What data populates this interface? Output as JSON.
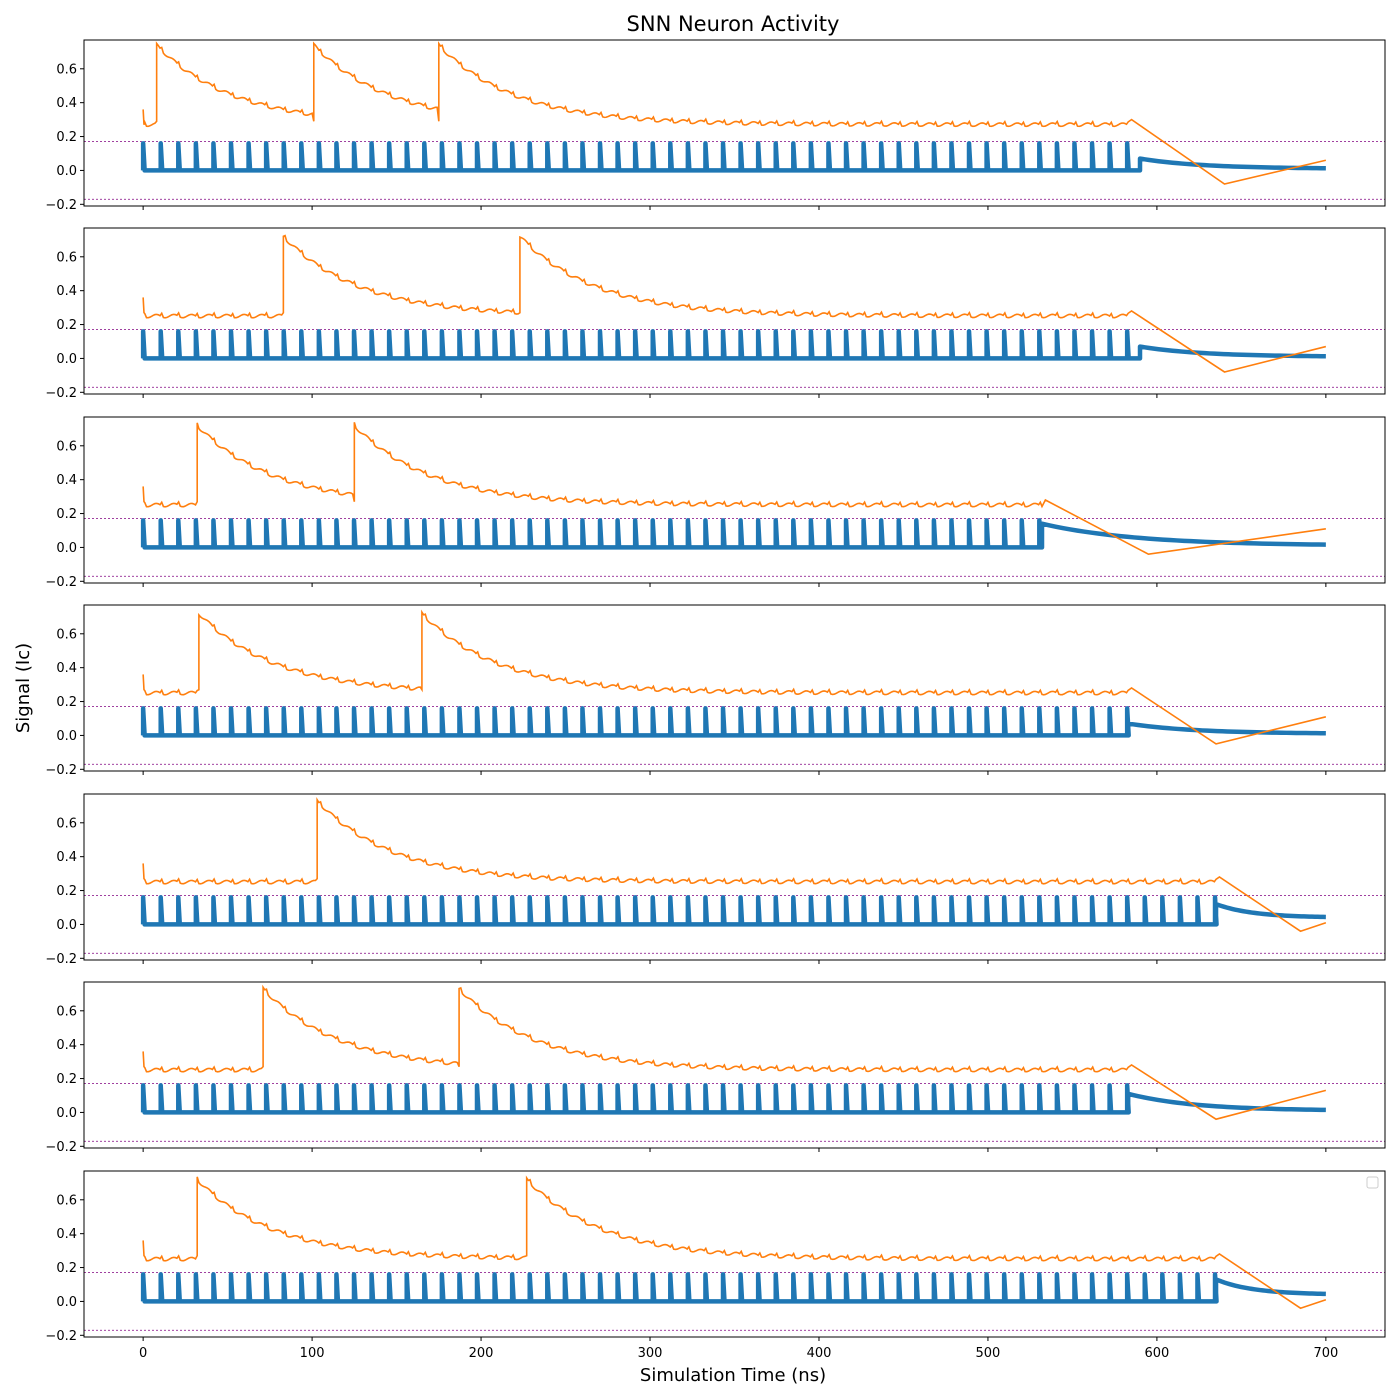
{
  "figure": {
    "title": "SNN Neuron Activity",
    "xlabel": "Simulation Time (ns)",
    "ylabel": "Signal (Ic)"
  },
  "colors": {
    "spikes": "#1f77b4",
    "membrane": "#ff7f0e",
    "threshold": "#800080",
    "axes": "#000000"
  },
  "chart_data": {
    "type": "line",
    "title": "SNN Neuron Activity",
    "xlabel": "Simulation Time (ns)",
    "ylabel": "Signal (Ic)",
    "xlim": [
      -35,
      735
    ],
    "ylim": [
      -0.21,
      0.77
    ],
    "x_ticks": [
      0,
      100,
      200,
      300,
      400,
      500,
      600,
      700
    ],
    "y_ticks": [
      -0.2,
      0.0,
      0.2,
      0.4,
      0.6
    ],
    "threshold_lines": [
      0.17,
      -0.17
    ],
    "spike_period_ns": 10.4,
    "spike_height": 0.16,
    "spike_start_ns": 0,
    "shared_x_axis": true,
    "empty_legend_box_in_last_panel": "top-right",
    "panels": [
      {
        "panel": 1,
        "spikes_end_ns": 583,
        "step_at_ns": 590,
        "step_value": 0.07,
        "decay_end_value": 0.01,
        "membrane": {
          "fire_times_ns": [
            8,
            101,
            175
          ],
          "peak_value": 0.74,
          "post_spike_decay": true,
          "pre_spike_level": 0.27,
          "final_trough": {
            "x": 640,
            "y": -0.08
          },
          "end_value": 0.06
        }
      },
      {
        "panel": 2,
        "spikes_end_ns": 583,
        "step_at_ns": 590,
        "step_value": 0.07,
        "decay_end_value": 0.01,
        "membrane": {
          "fire_times_ns": [
            83,
            223
          ],
          "peak_value": 0.72,
          "pre_spike_level": 0.25,
          "final_trough": {
            "x": 640,
            "y": -0.08
          },
          "end_value": 0.07
        }
      },
      {
        "panel": 3,
        "spikes_end_ns": 532,
        "step_at_ns": 532,
        "step_value": 0.14,
        "decay_end_value": 0.01,
        "membrane": {
          "fire_times_ns": [
            32,
            125
          ],
          "peak_value": 0.72,
          "pre_spike_level": 0.25,
          "final_trough": {
            "x": 595,
            "y": -0.04
          },
          "end_value": 0.11
        }
      },
      {
        "panel": 4,
        "spikes_end_ns": 583,
        "step_at_ns": 583,
        "step_value": 0.07,
        "decay_end_value": 0.01,
        "membrane": {
          "fire_times_ns": [
            33,
            165
          ],
          "peak_value": 0.72,
          "pre_spike_level": 0.25,
          "final_trough": {
            "x": 635,
            "y": -0.05
          },
          "end_value": 0.11
        }
      },
      {
        "panel": 5,
        "spikes_end_ns": 635,
        "step_at_ns": 635,
        "step_value": 0.12,
        "decay_end_value": 0.04,
        "membrane": {
          "fire_times_ns": [
            103
          ],
          "peak_value": 0.73,
          "pre_spike_level": 0.25,
          "final_trough": {
            "x": 685,
            "y": -0.04
          },
          "end_value": 0.01
        }
      },
      {
        "panel": 6,
        "spikes_end_ns": 583,
        "step_at_ns": 583,
        "step_value": 0.11,
        "decay_end_value": 0.01,
        "membrane": {
          "fire_times_ns": [
            71,
            187
          ],
          "peak_value": 0.73,
          "pre_spike_level": 0.25,
          "final_trough": {
            "x": 635,
            "y": -0.04
          },
          "end_value": 0.13
        }
      },
      {
        "panel": 7,
        "spikes_end_ns": 635,
        "step_at_ns": 635,
        "step_value": 0.13,
        "decay_end_value": 0.04,
        "membrane": {
          "fire_times_ns": [
            32,
            227
          ],
          "peak_value": 0.72,
          "pre_spike_level": 0.25,
          "final_trough": {
            "x": 685,
            "y": -0.04
          },
          "end_value": 0.01
        }
      }
    ]
  }
}
